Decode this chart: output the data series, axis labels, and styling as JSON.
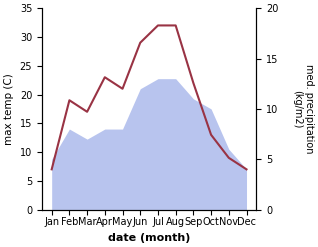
{
  "months": [
    "Jan",
    "Feb",
    "Mar",
    "Apr",
    "May",
    "Jun",
    "Jul",
    "Aug",
    "Sep",
    "Oct",
    "Nov",
    "Dec"
  ],
  "max_temp": [
    7,
    19,
    17,
    23,
    21,
    29,
    32,
    32,
    22,
    13,
    9,
    7
  ],
  "precipitation": [
    5,
    8,
    7,
    8,
    8,
    12,
    13,
    13,
    11,
    10,
    6,
    4
  ],
  "temp_color": "#993344",
  "precip_fill_color": "#b8c4ee",
  "title": "",
  "xlabel": "date (month)",
  "ylabel_left": "max temp (C)",
  "ylabel_right": "med. precipitation\n(kg/m2)",
  "ylim_left": [
    0,
    35
  ],
  "ylim_right": [
    0,
    20
  ],
  "yticks_left": [
    0,
    5,
    10,
    15,
    20,
    25,
    30,
    35
  ],
  "yticks_right": [
    0,
    5,
    10,
    15,
    20
  ],
  "background_color": "#ffffff",
  "fig_width": 3.18,
  "fig_height": 2.47,
  "dpi": 100
}
